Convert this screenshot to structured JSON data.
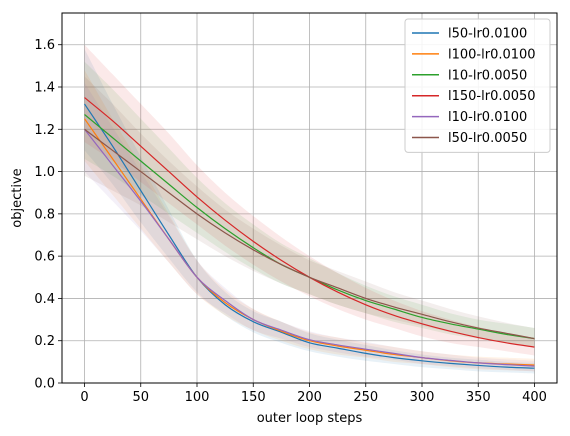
{
  "chart_data": {
    "type": "line",
    "xlabel": "outer loop steps",
    "ylabel": "objective",
    "xlim": [
      -20,
      420
    ],
    "ylim": [
      0.0,
      1.75
    ],
    "xticks": [
      0,
      50,
      100,
      150,
      200,
      250,
      300,
      350,
      400
    ],
    "yticks": [
      0.0,
      0.2,
      0.4,
      0.6,
      0.8,
      1.0,
      1.2,
      1.4,
      1.6
    ],
    "grid": true,
    "legend_position": "top-right",
    "x": [
      0,
      25,
      50,
      75,
      100,
      125,
      150,
      175,
      200,
      225,
      250,
      275,
      300,
      325,
      350,
      375,
      400
    ],
    "series": [
      {
        "name": "l50-lr0.0100",
        "color": "#1f77b4",
        "values": [
          1.32,
          1.12,
          0.91,
          0.7,
          0.5,
          0.37,
          0.29,
          0.24,
          0.19,
          0.165,
          0.14,
          0.12,
          0.105,
          0.093,
          0.083,
          0.075,
          0.07
        ],
        "lower": [
          1.1,
          0.94,
          0.76,
          0.59,
          0.43,
          0.32,
          0.24,
          0.19,
          0.15,
          0.125,
          0.105,
          0.09,
          0.075,
          0.065,
          0.055,
          0.05,
          0.045
        ],
        "upper": [
          1.58,
          1.32,
          1.07,
          0.82,
          0.58,
          0.43,
          0.34,
          0.29,
          0.235,
          0.205,
          0.18,
          0.155,
          0.135,
          0.12,
          0.11,
          0.1,
          0.095
        ]
      },
      {
        "name": "l100-lr0.0100",
        "color": "#ff7f0e",
        "values": [
          1.25,
          1.06,
          0.87,
          0.68,
          0.5,
          0.38,
          0.3,
          0.245,
          0.2,
          0.175,
          0.155,
          0.135,
          0.12,
          0.105,
          0.095,
          0.09,
          0.085
        ],
        "lower": [
          1.05,
          0.89,
          0.73,
          0.57,
          0.42,
          0.32,
          0.25,
          0.2,
          0.16,
          0.135,
          0.12,
          0.1,
          0.09,
          0.075,
          0.065,
          0.06,
          0.055
        ],
        "upper": [
          1.48,
          1.25,
          1.03,
          0.8,
          0.58,
          0.44,
          0.35,
          0.29,
          0.24,
          0.215,
          0.19,
          0.17,
          0.15,
          0.135,
          0.125,
          0.12,
          0.115
        ]
      },
      {
        "name": "l10-lr0.0050",
        "color": "#2ca02c",
        "values": [
          1.27,
          1.16,
          1.05,
          0.94,
          0.83,
          0.73,
          0.64,
          0.56,
          0.5,
          0.44,
          0.39,
          0.35,
          0.31,
          0.28,
          0.255,
          0.23,
          0.21
        ],
        "lower": [
          1.06,
          0.98,
          0.89,
          0.8,
          0.71,
          0.62,
          0.54,
          0.47,
          0.42,
          0.37,
          0.33,
          0.29,
          0.26,
          0.23,
          0.21,
          0.19,
          0.17
        ],
        "upper": [
          1.52,
          1.39,
          1.25,
          1.11,
          0.97,
          0.85,
          0.75,
          0.66,
          0.59,
          0.52,
          0.46,
          0.41,
          0.37,
          0.33,
          0.3,
          0.28,
          0.26
        ]
      },
      {
        "name": "l150-lr0.0050",
        "color": "#d62728",
        "values": [
          1.35,
          1.24,
          1.12,
          1.0,
          0.88,
          0.77,
          0.67,
          0.58,
          0.5,
          0.43,
          0.37,
          0.32,
          0.28,
          0.245,
          0.215,
          0.19,
          0.17
        ],
        "lower": [
          1.14,
          1.05,
          0.95,
          0.85,
          0.75,
          0.65,
          0.56,
          0.48,
          0.41,
          0.35,
          0.3,
          0.26,
          0.22,
          0.19,
          0.17,
          0.15,
          0.13
        ],
        "upper": [
          1.6,
          1.46,
          1.32,
          1.18,
          1.03,
          0.9,
          0.79,
          0.69,
          0.6,
          0.52,
          0.45,
          0.39,
          0.34,
          0.3,
          0.265,
          0.235,
          0.21
        ]
      },
      {
        "name": "l10-lr0.0100",
        "color": "#9467bd",
        "values": [
          1.2,
          1.03,
          0.86,
          0.68,
          0.5,
          0.39,
          0.3,
          0.25,
          0.205,
          0.18,
          0.16,
          0.14,
          0.12,
          0.107,
          0.095,
          0.087,
          0.08
        ],
        "lower": [
          1.0,
          0.86,
          0.72,
          0.57,
          0.42,
          0.33,
          0.25,
          0.21,
          0.17,
          0.145,
          0.125,
          0.11,
          0.09,
          0.08,
          0.07,
          0.062,
          0.055
        ],
        "upper": [
          1.42,
          1.21,
          1.0,
          0.79,
          0.58,
          0.45,
          0.35,
          0.29,
          0.245,
          0.215,
          0.195,
          0.17,
          0.15,
          0.135,
          0.12,
          0.112,
          0.105
        ]
      },
      {
        "name": "l50-lr0.0050",
        "color": "#8c564b",
        "values": [
          1.2,
          1.1,
          1.0,
          0.9,
          0.8,
          0.71,
          0.63,
          0.56,
          0.5,
          0.45,
          0.4,
          0.36,
          0.325,
          0.29,
          0.26,
          0.235,
          0.21
        ],
        "lower": [
          0.98,
          0.91,
          0.84,
          0.76,
          0.68,
          0.6,
          0.53,
          0.47,
          0.42,
          0.37,
          0.33,
          0.3,
          0.27,
          0.24,
          0.215,
          0.19,
          0.17
        ],
        "upper": [
          1.45,
          1.32,
          1.18,
          1.05,
          0.93,
          0.82,
          0.73,
          0.65,
          0.58,
          0.53,
          0.48,
          0.43,
          0.39,
          0.35,
          0.315,
          0.285,
          0.26
        ]
      }
    ]
  }
}
